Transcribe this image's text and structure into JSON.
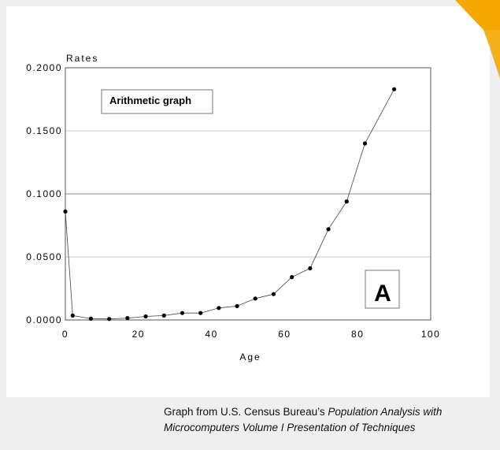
{
  "chart_data": {
    "type": "line",
    "title": "",
    "ylabel": "Rates",
    "xlabel": "Age",
    "xlim": [
      0,
      100
    ],
    "ylim": [
      0,
      0.2
    ],
    "x_ticks": [
      0,
      20,
      40,
      60,
      80,
      100
    ],
    "x_tick_labels": [
      "0",
      "20",
      "40",
      "60",
      "80",
      "100"
    ],
    "y_ticks": [
      0,
      0.05,
      0.1,
      0.15,
      0.2
    ],
    "y_tick_labels": [
      "0.0000",
      "0.0500",
      "0.1000",
      "0.1500",
      "0.2000"
    ],
    "grid": "horizontal",
    "series": [
      {
        "x": [
          0,
          2,
          7,
          12,
          17,
          22,
          27,
          32,
          37,
          42,
          47,
          52,
          57,
          62,
          67,
          72,
          77,
          82,
          90
        ],
        "y": [
          0.086,
          0.0035,
          0.001,
          0.0008,
          0.0015,
          0.0028,
          0.0035,
          0.0055,
          0.0055,
          0.0095,
          0.011,
          0.017,
          0.0205,
          0.034,
          0.041,
          0.072,
          0.094,
          0.14,
          0.183
        ]
      }
    ],
    "annotations": {
      "box_label": "Arithmetic graph",
      "panel_letter": "A"
    }
  },
  "caption": {
    "prefix": "Graph from U.S. Census Bureau’s ",
    "italic": "Population Analysis with Microcomputers Volume I Presentation of Techniques"
  },
  "colors": {
    "background": "#efefef",
    "card": "#ffffff",
    "accent": "#f5a800",
    "line": "#000000",
    "grid": "#a0a0a0"
  }
}
